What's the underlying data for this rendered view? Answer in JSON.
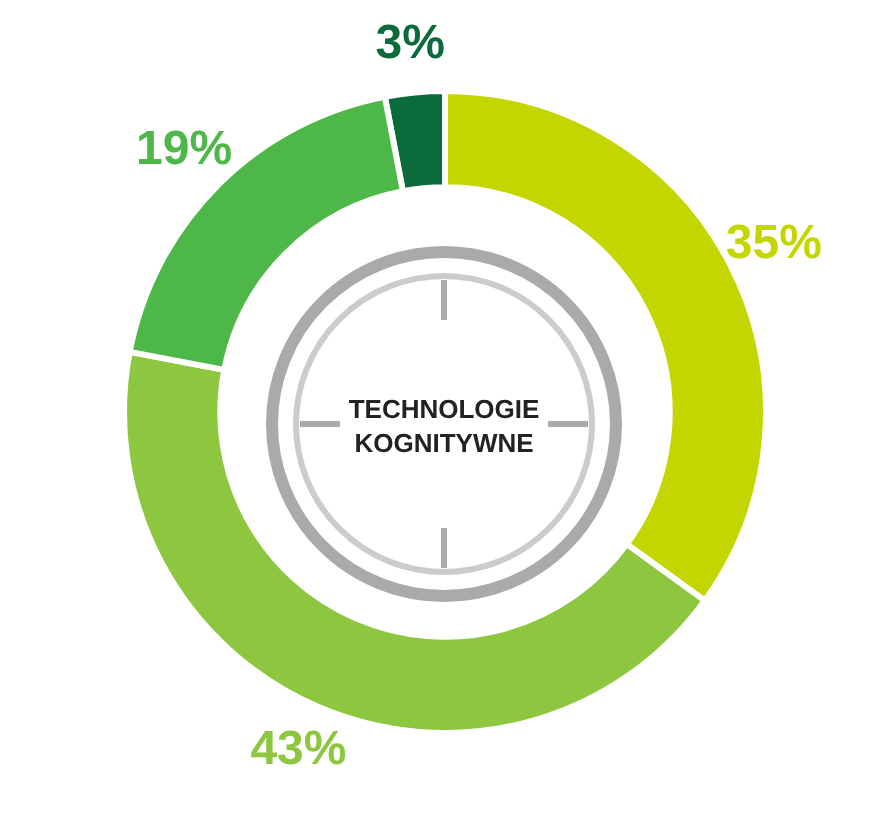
{
  "chart_data": {
    "type": "donut",
    "title": "TECHNOLOGIE KOGNITYWNE",
    "categories": [
      null,
      null,
      null,
      null
    ],
    "values": [
      3,
      35,
      43,
      19
    ],
    "value_labels": [
      "3%",
      "35%",
      "43%",
      "19%"
    ],
    "colors": [
      "#0b6b3a",
      "#c4d600",
      "#8dc63f",
      "#4db848"
    ]
  }
}
